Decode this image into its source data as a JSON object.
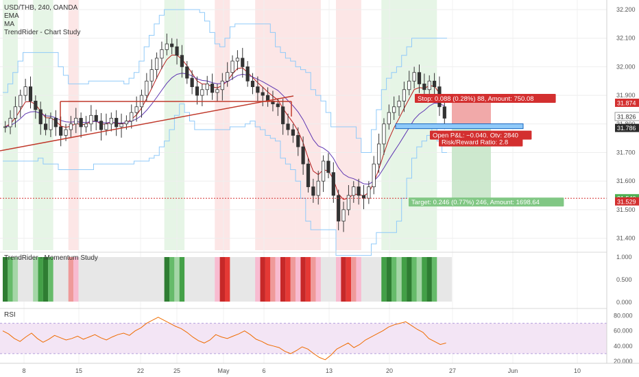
{
  "chart_data": {
    "type": "candlestick",
    "main": {
      "symbol_title": "USD/THB, 240, OANDA",
      "indicators": [
        "EMA",
        "MA",
        "TrendRider - Chart Study"
      ],
      "y_ticks": [
        "32.200",
        "32.100",
        "32.000",
        "31.900",
        "31.800",
        "31.700",
        "31.600",
        "31.500",
        "31.400"
      ],
      "x_ticks": [
        "8",
        "15",
        "22",
        "25",
        "May",
        "6",
        "13",
        "20",
        "27",
        "Jun",
        "10"
      ],
      "price_tags": [
        {
          "label": "31.874",
          "value": 31.874,
          "color": "#d32f2f"
        },
        {
          "label": "31.826",
          "value": 31.826,
          "color": "#ffffff"
        },
        {
          "label": "31.786",
          "value": 31.786,
          "color": "#2b2b2b"
        },
        {
          "label": "31.540",
          "value": 31.54,
          "color": "#4caf50"
        },
        {
          "label": "31.529",
          "value": 31.529,
          "color": "#d32f2f"
        }
      ],
      "position": {
        "stop_label": "Stop: 0.088 (0.28%) 88, Amount: 750.08",
        "open_label": "Open P&L: −0.040, Qty: 2840",
        "rr_label": "Risk/Reward Ratio: 2.8",
        "target_label": "Target: 0.246 (0.77%) 246, Amount: 1698.64",
        "entry": 31.786,
        "stop": 31.874,
        "target": 31.54
      },
      "ohlc_close": [
        31.79,
        31.82,
        31.86,
        31.9,
        31.93,
        31.88,
        31.85,
        31.8,
        31.78,
        31.82,
        31.79,
        31.76,
        31.78,
        31.8,
        31.82,
        31.79,
        31.8,
        31.83,
        31.81,
        31.78,
        31.8,
        31.82,
        31.79,
        31.8,
        31.81,
        31.84,
        31.86,
        31.9,
        31.95,
        31.99,
        32.03,
        32.06,
        32.08,
        32.07,
        32.04,
        32.0,
        31.96,
        31.93,
        31.9,
        31.92,
        31.94,
        31.91,
        31.92,
        31.95,
        31.98,
        32.02,
        32.03,
        32.0,
        31.95,
        31.93,
        31.91,
        31.9,
        31.88,
        31.87,
        31.86,
        31.8,
        31.78,
        31.76,
        31.72,
        31.66,
        31.58,
        31.55,
        31.6,
        31.67,
        31.63,
        31.55,
        31.46,
        31.5,
        31.55,
        31.58,
        31.55,
        31.54,
        31.58,
        31.66,
        31.73,
        31.8,
        31.84,
        31.86,
        31.88,
        31.92,
        31.95,
        31.98,
        31.94,
        31.92,
        31.95,
        31.93,
        31.86,
        31.82
      ],
      "background_bands": [
        {
          "from": 0,
          "to": 2,
          "color": "green"
        },
        {
          "from": 6,
          "to": 9,
          "color": "green"
        },
        {
          "from": 13,
          "to": 14,
          "color": "red"
        },
        {
          "from": 32,
          "to": 35,
          "color": "green"
        },
        {
          "from": 42,
          "to": 44,
          "color": "red"
        },
        {
          "from": 50,
          "to": 57,
          "color": "red"
        },
        {
          "from": 58,
          "to": 62,
          "color": "red"
        },
        {
          "from": 66,
          "to": 70,
          "color": "red"
        },
        {
          "from": 75,
          "to": 85,
          "color": "green"
        }
      ]
    },
    "momentum": {
      "title": "TrendRider - Momentum Study",
      "y_ticks": [
        "1.000",
        "0.500",
        "0.000"
      ]
    },
    "rsi": {
      "title": "RSI",
      "y_ticks": [
        "80.000",
        "60.000",
        "40.000",
        "20.000"
      ],
      "values": [
        60,
        56,
        50,
        46,
        52,
        57,
        50,
        45,
        49,
        54,
        51,
        48,
        50,
        53,
        49,
        52,
        55,
        51,
        48,
        52,
        55,
        57,
        54,
        60,
        64,
        70,
        74,
        78,
        74,
        70,
        66,
        63,
        58,
        52,
        47,
        44,
        48,
        55,
        52,
        50,
        53,
        56,
        60,
        55,
        49,
        46,
        42,
        40,
        38,
        33,
        30,
        34,
        39,
        36,
        30,
        25,
        22,
        28,
        36,
        40,
        44,
        38,
        42,
        48,
        52,
        56,
        60,
        65,
        68,
        70,
        72,
        67,
        62,
        58,
        50,
        46,
        42,
        44
      ]
    }
  }
}
